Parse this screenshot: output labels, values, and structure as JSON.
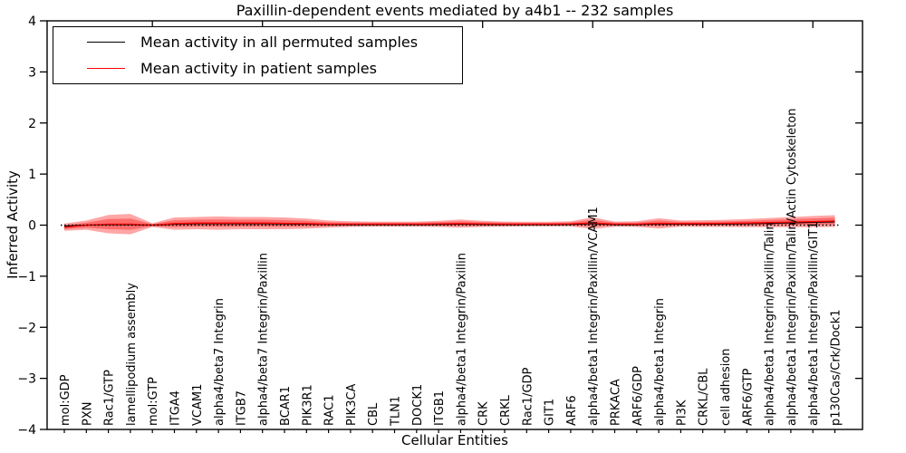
{
  "figure": {
    "background": "#ffffff"
  },
  "chart_data": {
    "type": "line",
    "title": "Paxillin-dependent events mediated by a4b1 -- 232 samples",
    "xlabel": "Cellular Entities",
    "ylabel": "Inferred Activity",
    "ylim": [
      -4,
      4
    ],
    "ytick_values": [
      -4,
      -3,
      -2,
      -1,
      0,
      1,
      2,
      3,
      4
    ],
    "x_major_tick_every": 5,
    "grid": false,
    "legend_position": "upper left",
    "categories": [
      "mol:GDP",
      "PXN",
      "Rac1/GTP",
      "lamellipodium assembly",
      "mol:GTP",
      "ITGA4",
      "VCAM1",
      "alpha4/beta7 Integrin",
      "ITGB7",
      "alpha4/beta7 Integrin/Paxillin",
      "BCAR1",
      "PIK3R1",
      "RAC1",
      "PIK3CA",
      "CBL",
      "TLN1",
      "DOCK1",
      "ITGB1",
      "alpha4/beta1 Integrin/Paxillin",
      "CRK",
      "CRKL",
      "Rac1/GDP",
      "GIT1",
      "ARF6",
      "alpha4/beta1 Integrin/Paxillin/VCAM1",
      "PRKACA",
      "ARF6/GDP",
      "alpha4/beta1 Integrin",
      "PI3K",
      "CRKL/CBL",
      "cell adhesion",
      "ARF6/GTP",
      "alpha4/beta1 Integrin/Paxillin/Talin",
      "alpha4/beta1 Integrin/Paxillin/Talin/Actin Cytoskeleton",
      "alpha4/beta1 Integrin/Paxillin/GIT1",
      "p130Cas/Crk/Dock1"
    ],
    "series": [
      {
        "name": "Mean activity in all permuted samples",
        "color": "#000000",
        "style": "solid",
        "values": [
          -0.02,
          0.0,
          0.01,
          0.01,
          0.0,
          0.02,
          0.03,
          0.03,
          0.03,
          0.03,
          0.025,
          0.02,
          0.015,
          0.01,
          0.01,
          0.01,
          0.01,
          0.015,
          0.02,
          0.015,
          0.01,
          0.01,
          0.01,
          0.015,
          0.03,
          0.01,
          0.01,
          0.025,
          0.02,
          0.02,
          0.025,
          0.03,
          0.035,
          0.045,
          0.055,
          0.065
        ]
      },
      {
        "name": "Mean activity in patient samples",
        "color": "#ff0000",
        "style": "solid",
        "values": [
          -0.04,
          0.0,
          0.02,
          0.02,
          0.0,
          0.03,
          0.04,
          0.04,
          0.04,
          0.04,
          0.035,
          0.03,
          0.02,
          0.02,
          0.02,
          0.02,
          0.02,
          0.025,
          0.03,
          0.025,
          0.02,
          0.02,
          0.02,
          0.025,
          0.04,
          0.02,
          0.02,
          0.035,
          0.03,
          0.03,
          0.035,
          0.04,
          0.05,
          0.06,
          0.07,
          0.08
        ]
      }
    ],
    "patient_band": {
      "color": "#ff0000",
      "alpha": 0.35,
      "inner_ratio": 0.55,
      "halfwidths": [
        0.07,
        0.09,
        0.18,
        0.2,
        0.035,
        0.12,
        0.12,
        0.13,
        0.12,
        0.12,
        0.115,
        0.1,
        0.07,
        0.055,
        0.05,
        0.05,
        0.05,
        0.06,
        0.08,
        0.06,
        0.05,
        0.045,
        0.045,
        0.05,
        0.115,
        0.05,
        0.055,
        0.1,
        0.06,
        0.065,
        0.07,
        0.08,
        0.09,
        0.1,
        0.11,
        0.115
      ]
    },
    "zero_reference": {
      "value": 0,
      "color": "#000000",
      "style": "dotted"
    }
  }
}
